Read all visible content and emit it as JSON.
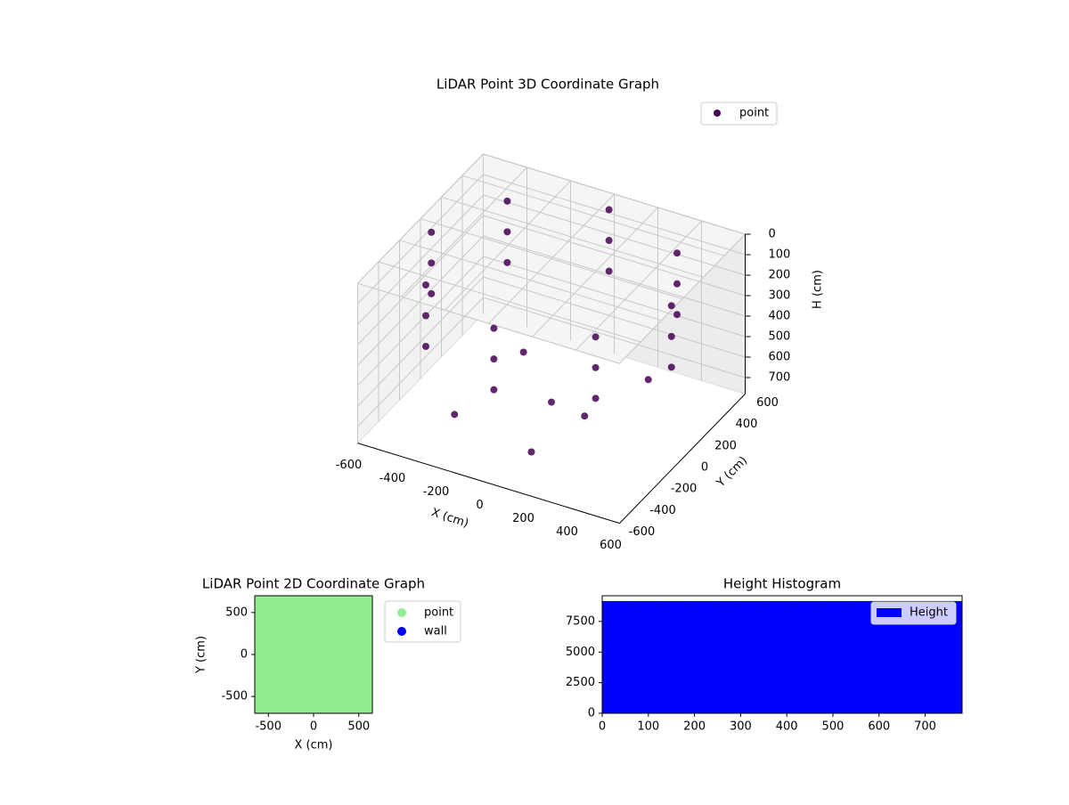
{
  "chart_data": [
    {
      "type": "scatter3d",
      "title": "LiDAR Point 3D Coordinate Graph",
      "xlabel": "X (cm)",
      "ylabel": "Y (cm)",
      "zlabel": "H (cm)",
      "xlim": [
        -600,
        600
      ],
      "ylim": [
        -600,
        600
      ],
      "zlim": [
        0,
        780
      ],
      "zinverted": true,
      "xticks": [
        -600,
        -400,
        -200,
        0,
        200,
        400,
        600
      ],
      "yticks": [
        -600,
        -400,
        -200,
        0,
        200,
        400,
        600
      ],
      "zticks": [
        0,
        100,
        200,
        300,
        400,
        500,
        600,
        700
      ],
      "legend": "upper right",
      "series": [
        {
          "name": "point",
          "color": "#440154",
          "x": [
            550,
            389,
            0,
            -389,
            -550,
            -389,
            0,
            389,
            550,
            389,
            0,
            -389,
            -550,
            -389,
            0,
            389,
            550,
            389,
            0,
            -389,
            -550,
            -389,
            0,
            389,
            0,
            200,
            -200,
            -300,
            300,
            100
          ],
          "y": [
            0,
            389,
            550,
            389,
            0,
            -389,
            -550,
            -389,
            0,
            389,
            550,
            389,
            0,
            -389,
            -550,
            -389,
            0,
            389,
            550,
            389,
            0,
            -389,
            -550,
            -389,
            0,
            -100,
            150,
            -300,
            300,
            -400
          ],
          "z": [
            50,
            50,
            50,
            50,
            50,
            50,
            50,
            50,
            200,
            200,
            200,
            200,
            200,
            200,
            200,
            200,
            350,
            350,
            350,
            350,
            350,
            350,
            350,
            350,
            700,
            650,
            600,
            700,
            650,
            700
          ]
        }
      ]
    },
    {
      "type": "scatter",
      "title": "LiDAR Point 2D Coordinate Graph",
      "xlabel": "X (cm)",
      "ylabel": "Y (cm)",
      "xlim": [
        -650,
        650
      ],
      "ylim": [
        -700,
        700
      ],
      "xticks": [
        -500,
        0,
        500
      ],
      "yticks": [
        -500,
        0,
        500
      ],
      "legend": "outside right",
      "series": [
        {
          "name": "point",
          "color": "#90ee90",
          "x": [
            -600,
            -300,
            0,
            300,
            600,
            -600,
            -300,
            0,
            300,
            600,
            -600,
            -300,
            0,
            300,
            600,
            -600,
            -300,
            0,
            300,
            600,
            -600,
            -300,
            0,
            300,
            600
          ],
          "y": [
            -600,
            -600,
            -600,
            -600,
            -600,
            -300,
            -300,
            -300,
            -300,
            -300,
            0,
            0,
            0,
            0,
            0,
            300,
            300,
            300,
            300,
            300,
            600,
            600,
            600,
            600,
            600
          ]
        },
        {
          "name": "wall",
          "color": "#0000ff",
          "x": [],
          "y": []
        }
      ]
    },
    {
      "type": "histogram",
      "title": "Height Histogram",
      "xlim": [
        0,
        780
      ],
      "ylim": [
        0,
        9600
      ],
      "xticks": [
        0,
        100,
        200,
        300,
        400,
        500,
        600,
        700
      ],
      "yticks": [
        0,
        2500,
        5000,
        7500
      ],
      "legend": "upper right",
      "series": [
        {
          "name": "Height",
          "color": "#0000ff",
          "bins": [
            0,
            60,
            120,
            180,
            240,
            300,
            360,
            420,
            480,
            540,
            600,
            660,
            720,
            780
          ],
          "values": [
            9170,
            9170,
            9170,
            9170,
            9170,
            9170,
            9170,
            9170,
            9170,
            9170,
            9170,
            9170,
            9170
          ]
        }
      ]
    }
  ]
}
